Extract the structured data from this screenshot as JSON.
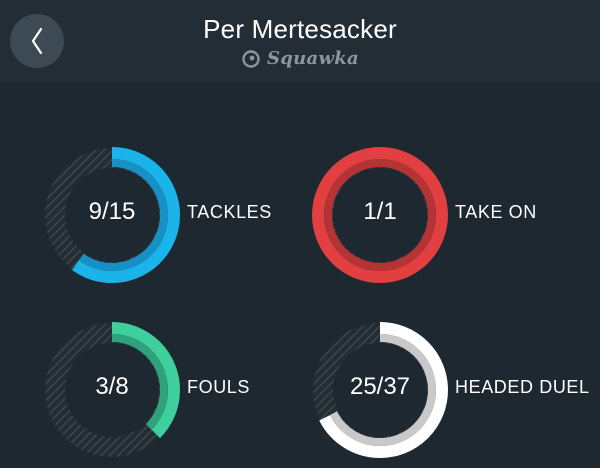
{
  "header": {
    "title": "Per Mertesacker",
    "brand": "Squawka",
    "back_icon": "chevron-left-icon",
    "brand_icon": "squawka-logo-icon"
  },
  "stats": [
    {
      "key": "tackles",
      "value_text": "9/15",
      "label": "TACKLES",
      "made": 9,
      "total": 15,
      "color": "#1ab3ea",
      "inner_color": "#1790c6"
    },
    {
      "key": "take_on",
      "value_text": "1/1",
      "label": "TAKE ON",
      "made": 1,
      "total": 1,
      "color": "#e23f40",
      "inner_color": "#b53335"
    },
    {
      "key": "fouls",
      "value_text": "3/8",
      "label": "FOULS",
      "made": 3,
      "total": 8,
      "color": "#3fcf9c",
      "inner_color": "#2fa27c"
    },
    {
      "key": "headed_duel",
      "value_text": "25/37",
      "label": "HEADED DUEL",
      "made": 25,
      "total": 37,
      "color": "#ffffff",
      "inner_color": "#c9c9c9"
    }
  ]
}
